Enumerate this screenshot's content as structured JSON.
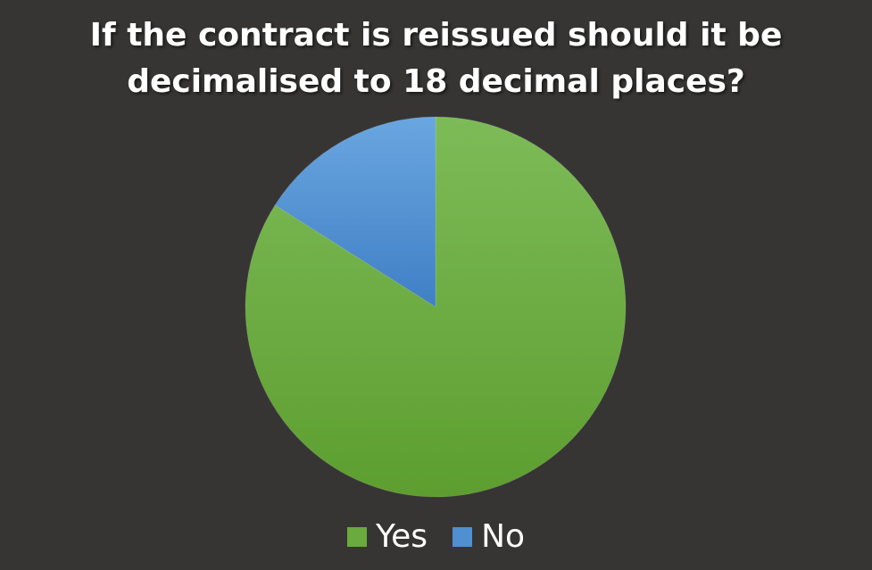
{
  "chart_data": {
    "type": "pie",
    "title": "If the contract is reissued should it be decimalised to 18 decimal places?",
    "categories": [
      "Yes",
      "No"
    ],
    "values": [
      84,
      16
    ],
    "colors": [
      "#6aab3d",
      "#4f8fd2"
    ],
    "legend_position": "bottom",
    "start_angle_deg": 0,
    "direction": "clockwise"
  },
  "legend": {
    "items": [
      {
        "label": "Yes",
        "color": "#6aab3d"
      },
      {
        "label": "No",
        "color": "#4f8fd2"
      }
    ]
  },
  "colors": {
    "background": "#363534",
    "title_text": "#ffffff"
  }
}
